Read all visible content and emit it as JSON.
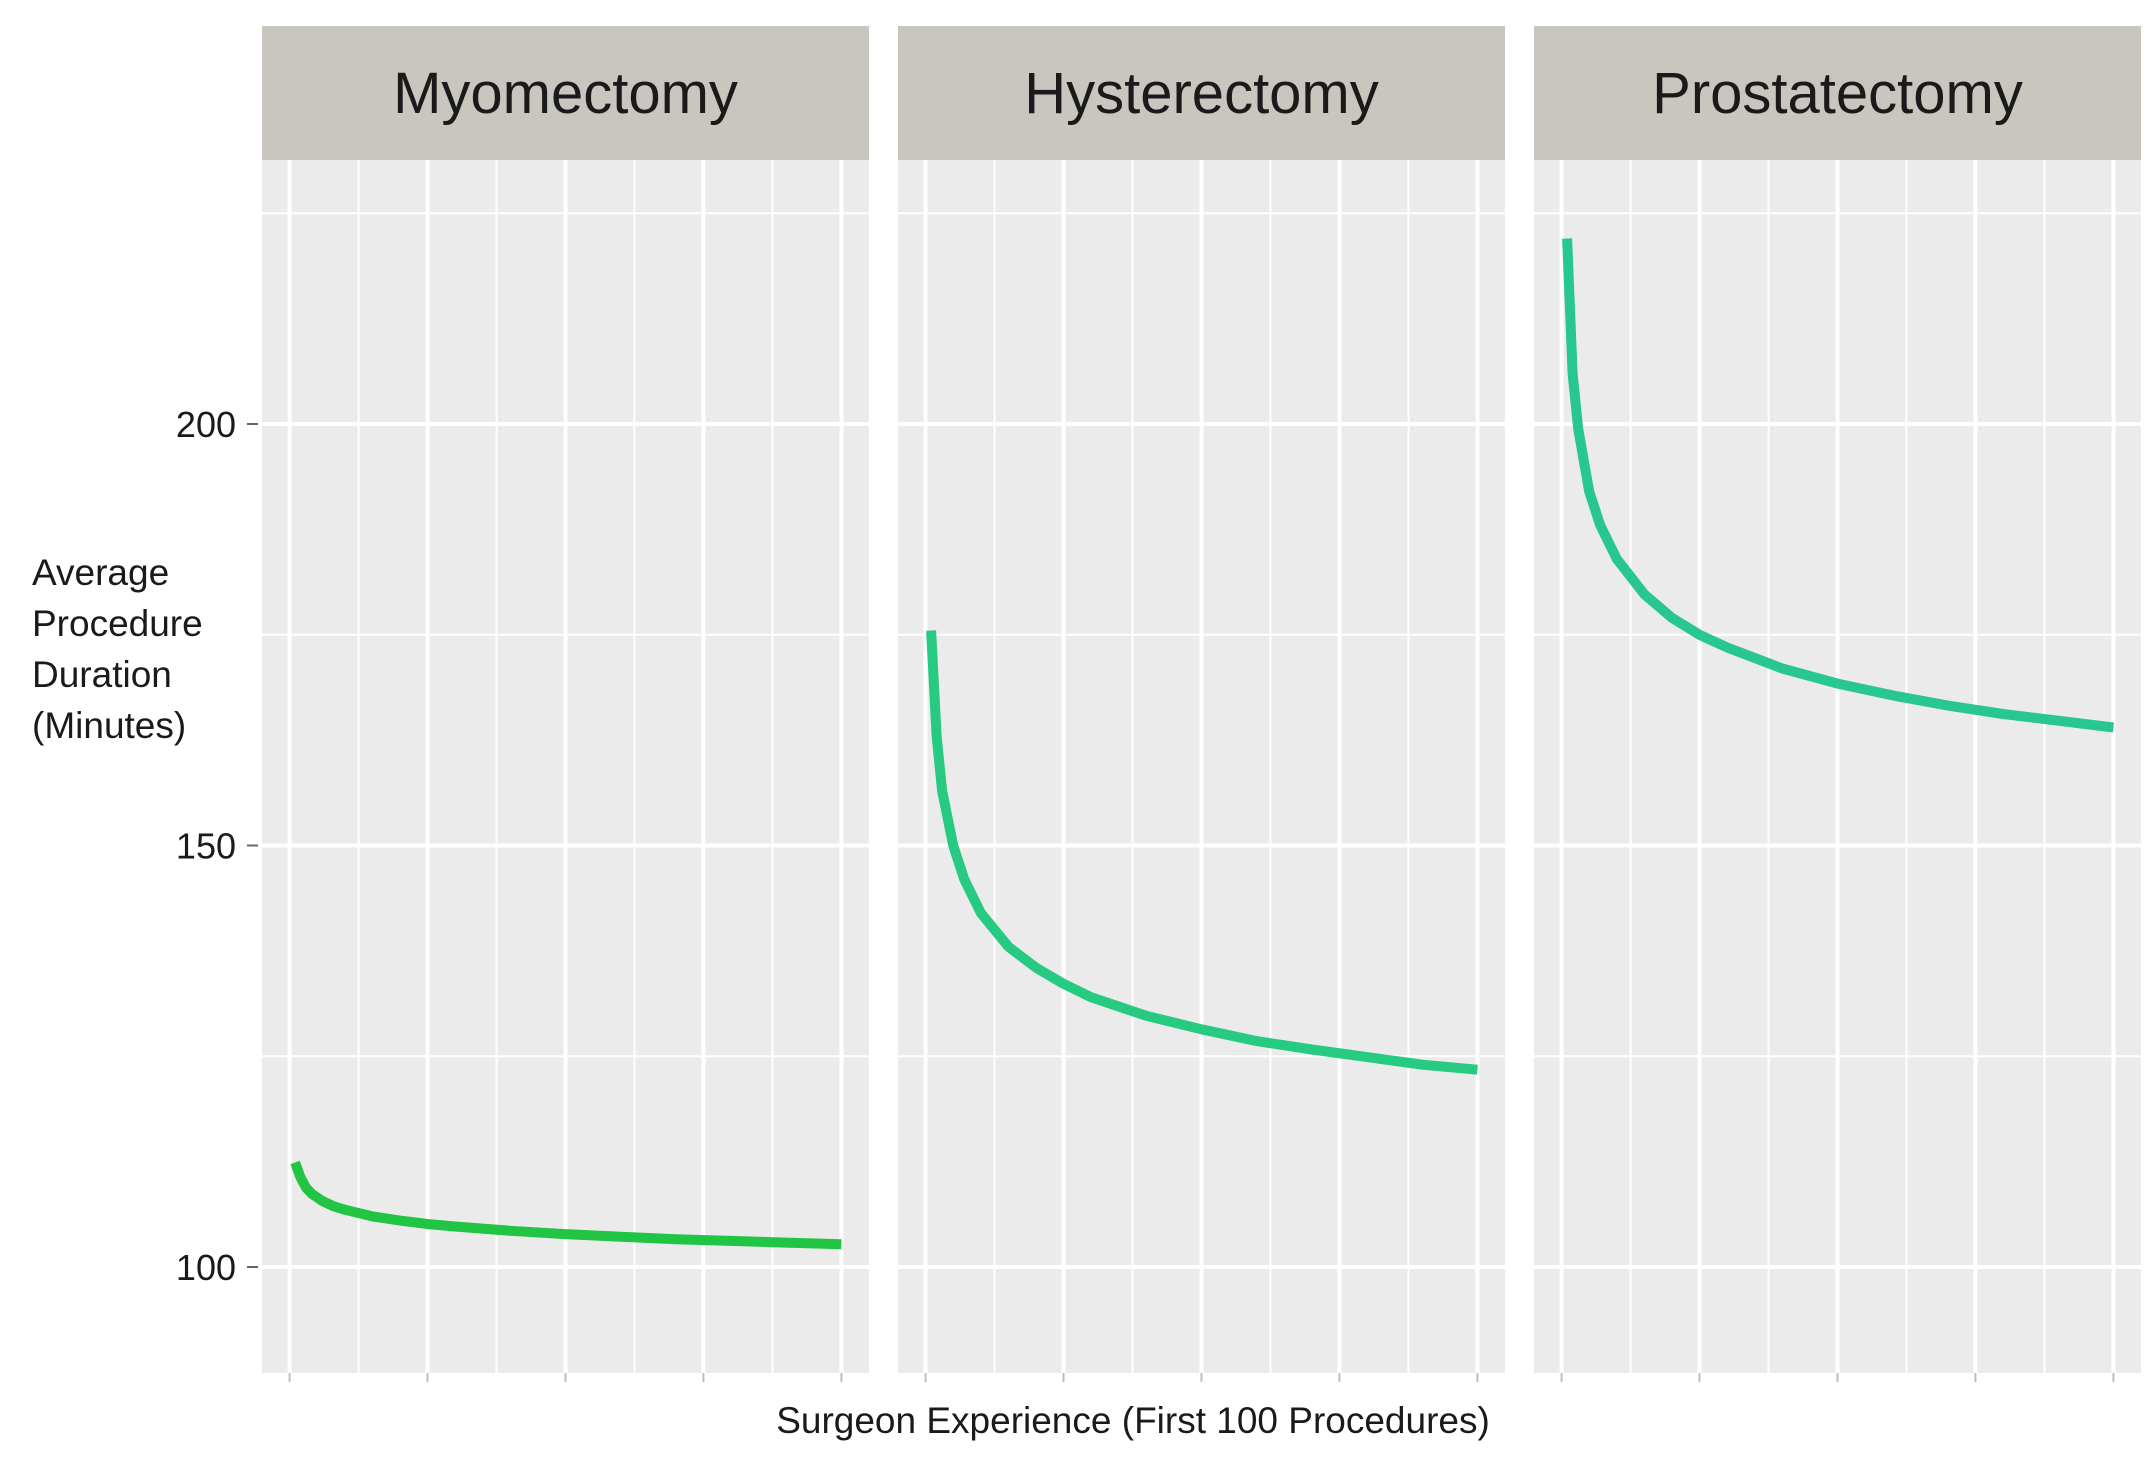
{
  "chart_data": {
    "type": "line",
    "layout": "facets",
    "ylabel": "Average Procedure Duration (Minutes)",
    "ylabel_lines": [
      "Average",
      "Procedure",
      "Duration",
      "(Minutes)"
    ],
    "xlabel": "Surgeon Experience (First 100 Procedures)",
    "ylim": [
      88,
      224
    ],
    "xlim": [
      -5,
      105
    ],
    "yticks": [
      100,
      150,
      200
    ],
    "ytick_labels": [
      "100",
      "150",
      "200"
    ],
    "grid": true,
    "colors": {
      "panel_bg": "#ebebeb",
      "grid": "#ffffff",
      "strip_bg": "#c8c6be",
      "myomectomy_line": "#16c23a",
      "hysterectomy_line": "#1bc87a",
      "prostatectomy_line": "#1ec48c"
    },
    "facets": [
      {
        "name": "Myomectomy",
        "color_key": "myomectomy_line",
        "x": [
          1,
          2,
          3,
          4,
          6,
          8,
          10,
          15,
          20,
          25,
          30,
          40,
          50,
          60,
          70,
          80,
          90,
          100
        ],
        "y": [
          112.4,
          110.6,
          109.4,
          108.7,
          107.8,
          107.2,
          106.8,
          106.0,
          105.5,
          105.1,
          104.8,
          104.3,
          103.9,
          103.6,
          103.3,
          103.1,
          102.9,
          102.7
        ]
      },
      {
        "name": "Hysterectomy",
        "color_key": "hysterectomy_line",
        "x": [
          1,
          2,
          3,
          5,
          7,
          10,
          15,
          20,
          25,
          30,
          40,
          50,
          60,
          70,
          80,
          90,
          100
        ],
        "y": [
          175.5,
          163.0,
          156.5,
          150.0,
          146.0,
          142.0,
          138.0,
          135.5,
          133.6,
          132.0,
          129.8,
          128.2,
          126.8,
          125.8,
          124.9,
          124.0,
          123.4
        ]
      },
      {
        "name": "Prostatectomy",
        "color_key": "prostatectomy_line",
        "x": [
          1,
          2,
          3,
          5,
          7,
          10,
          15,
          20,
          25,
          30,
          40,
          50,
          60,
          70,
          80,
          90,
          100
        ],
        "y": [
          222.0,
          206.0,
          199.5,
          192.0,
          188.0,
          184.0,
          179.8,
          177.0,
          175.0,
          173.5,
          171.0,
          169.2,
          167.8,
          166.6,
          165.6,
          164.8,
          164.0
        ]
      }
    ]
  }
}
